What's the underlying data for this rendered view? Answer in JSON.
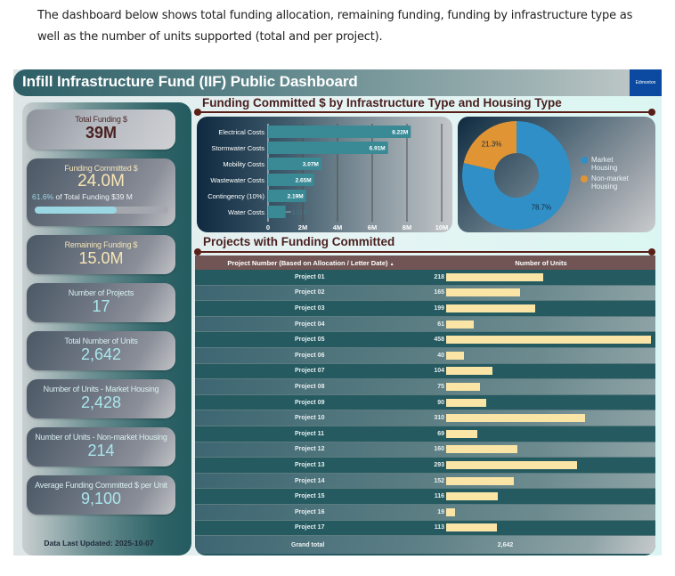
{
  "intro_text": "The dashboard below shows total funding allocation, remaining funding, funding by infrastructure type as well as the number of units supported (total and per project).",
  "dashboard": {
    "title": "Infill Infrastructure Fund (IIF) Public Dashboard",
    "logo_text": "Edmonton",
    "logo_color": "#0b4aa0"
  },
  "kpis": {
    "total_funding": {
      "label": "Total Funding $",
      "value": "39M"
    },
    "funding_committed": {
      "label": "Funding Committed $",
      "value": "24.0M",
      "pct_text": "61.6%",
      "pct_suffix": " of Total Funding $39 M",
      "progress": 0.616
    },
    "remaining_funding": {
      "label": "Remaining Funding $",
      "value": "15.0M"
    },
    "num_projects": {
      "label": "Number of Projects",
      "value": "17"
    },
    "total_units": {
      "label": "Total Number of Units",
      "value": "2,642"
    },
    "market_units": {
      "label": "Number of Units - Market Housing",
      "value": "2,428"
    },
    "nonmarket_units": {
      "label": "Number of Units - Non-market Housing",
      "value": "214"
    },
    "avg_per_unit": {
      "label": "Average Funding Committed $ per Unit",
      "value": "9,100"
    }
  },
  "data_updated": "Data Last Updated: 2025-10-07",
  "section_titles": {
    "funding_by_type": "Funding Committed $ by Infrastructure Type and Housing Type",
    "projects": "Projects with Funding Committed"
  },
  "chart_data": [
    {
      "type": "bar",
      "orientation": "horizontal",
      "title": "Funding Committed $ by Infrastructure Type",
      "categories": [
        "Electrical Costs",
        "Stormwater Costs",
        "Mobility Costs",
        "Wastewater Costs",
        "Contingency (10%)",
        "Water Costs"
      ],
      "values": [
        8.22,
        6.91,
        3.07,
        2.65,
        2.19,
        1.01
      ],
      "value_labels": [
        "8.22M",
        "6.91M",
        "3.07M",
        "2.65M",
        "2.19M",
        "1.01M"
      ],
      "xlim": [
        0,
        10
      ],
      "x_ticks": [
        "0",
        "2M",
        "4M",
        "6M",
        "8M",
        "10M"
      ],
      "grid": true,
      "color": "#3a8a96"
    },
    {
      "type": "pie",
      "subtype": "donut",
      "title": "Housing Type",
      "labels": [
        "Market Housing",
        "Non-market Housing"
      ],
      "values": [
        78.7,
        21.3
      ],
      "value_labels": [
        "78.7%",
        "21.3%"
      ],
      "colors": [
        "#2f8fc6",
        "#e09434"
      ],
      "legend": "right"
    },
    {
      "type": "table",
      "title": "Projects with Funding Committed",
      "columns": [
        "Project Number (Based on Allocation / Letter Date)",
        "Number of Units"
      ],
      "sort_indicator": "▲",
      "rows": [
        {
          "project": "Project 01",
          "units": 218
        },
        {
          "project": "Project 02",
          "units": 165
        },
        {
          "project": "Project 03",
          "units": 199
        },
        {
          "project": "Project 04",
          "units": 61
        },
        {
          "project": "Project 05",
          "units": 458
        },
        {
          "project": "Project 06",
          "units": 40
        },
        {
          "project": "Project 07",
          "units": 104
        },
        {
          "project": "Project 08",
          "units": 75
        },
        {
          "project": "Project 09",
          "units": 90
        },
        {
          "project": "Project 10",
          "units": 310
        },
        {
          "project": "Project 11",
          "units": 69
        },
        {
          "project": "Project 12",
          "units": 160
        },
        {
          "project": "Project 13",
          "units": 293
        },
        {
          "project": "Project 14",
          "units": 152
        },
        {
          "project": "Project 15",
          "units": 116
        },
        {
          "project": "Project 16",
          "units": 19
        },
        {
          "project": "Project 17",
          "units": 113
        }
      ],
      "footer_label": "Grand total",
      "footer_value": "2,642",
      "bar_color": "#fbe5a6"
    }
  ]
}
